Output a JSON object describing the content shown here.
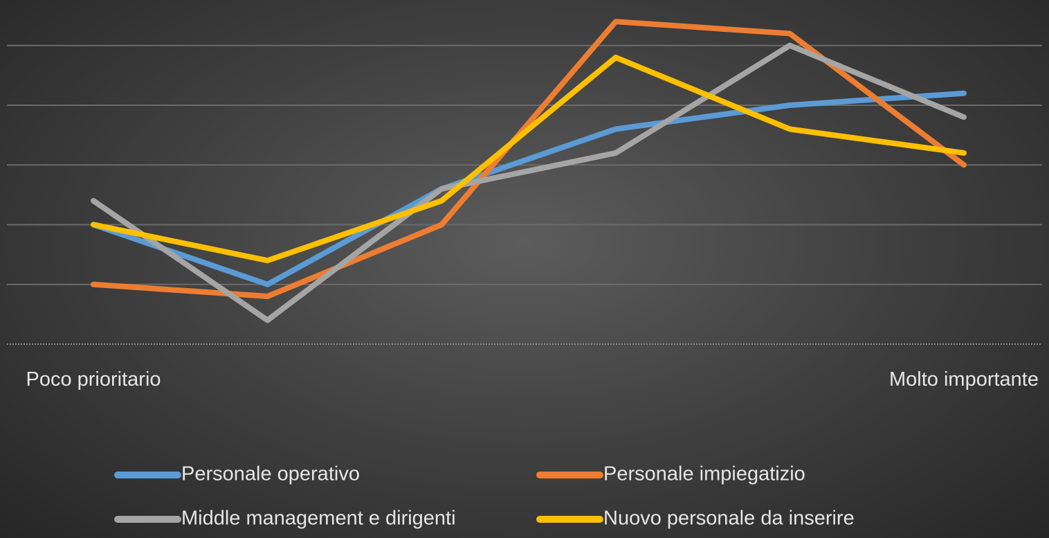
{
  "chart_data": {
    "type": "line",
    "categories": [
      "Poco prioritario",
      null,
      null,
      null,
      null,
      "Molto importante"
    ],
    "series": [
      {
        "name": "Personale operativo",
        "color": "#5b9bd5",
        "values": [
          2.0,
          1.0,
          2.6,
          3.6,
          4.0,
          4.2
        ]
      },
      {
        "name": "Personale impiegatizio",
        "color": "#ed7d31",
        "values": [
          1.0,
          0.8,
          2.0,
          5.4,
          5.2,
          3.0
        ]
      },
      {
        "name": "Middle management e dirigenti",
        "color": "#a5a5a5",
        "values": [
          2.4,
          0.4,
          2.6,
          3.2,
          5.0,
          3.8
        ]
      },
      {
        "name": "Nuovo personale da inserire",
        "color": "#ffc000",
        "values": [
          2.0,
          1.4,
          2.4,
          4.8,
          3.6,
          3.2
        ]
      }
    ],
    "ylim": [
      0,
      5.75
    ],
    "yticks": [
      0,
      1,
      2,
      3,
      4,
      5
    ],
    "grid": true,
    "legend": "bottom"
  }
}
